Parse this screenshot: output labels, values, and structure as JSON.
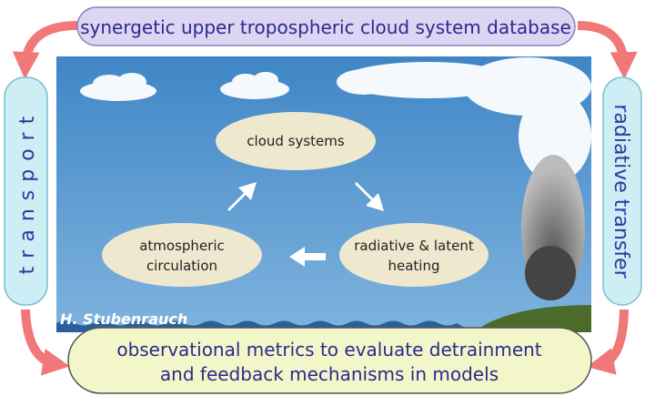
{
  "header": {
    "title": "synergetic upper tropospheric cloud system database"
  },
  "left": {
    "label": "transport"
  },
  "right": {
    "label": "radiative transfer"
  },
  "footer": {
    "lines": [
      "observational metrics to evaluate detrainment",
      "and feedback mechanisms in models"
    ]
  },
  "nodes": [
    {
      "lines": [
        "cloud systems"
      ]
    },
    {
      "lines": [
        "atmospheric",
        "circulation"
      ]
    },
    {
      "lines": [
        "radiative & latent",
        "heating"
      ]
    }
  ],
  "credit": "H. Stubenrauch"
}
